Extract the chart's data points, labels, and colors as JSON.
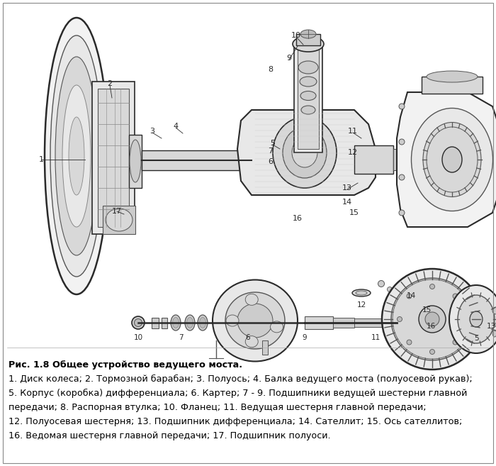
{
  "fig_width": 7.0,
  "fig_height": 6.57,
  "dpi": 100,
  "background_color": "#ffffff",
  "caption_lines": [
    "Рис. 1.8 Общее устройство ведущего моста.",
    "1. Диск колеса; 2. Тормозной барабан; 3. Полуось; 4. Балка ведущего моста (полуосевой рукав);",
    "5. Корпус (коробка) дифференциала; 6. Картер; 7 - 9. Подшипники ведущей шестерни главной",
    "передачи; 8. Распорная втулка; 10. Фланец; 11. Ведущая шестерня главной передачи;",
    "12. Полуосевая шестерня; 13. Подшипник дифференциала; 14. Сателлит; 15. Ось сателлитов;",
    "16. Ведомая шестерня главной передачи; 17. Подшипник полуоси."
  ],
  "caption_fontsize": 9.2,
  "border_color": "#aaaaaa",
  "text_color": "#000000"
}
